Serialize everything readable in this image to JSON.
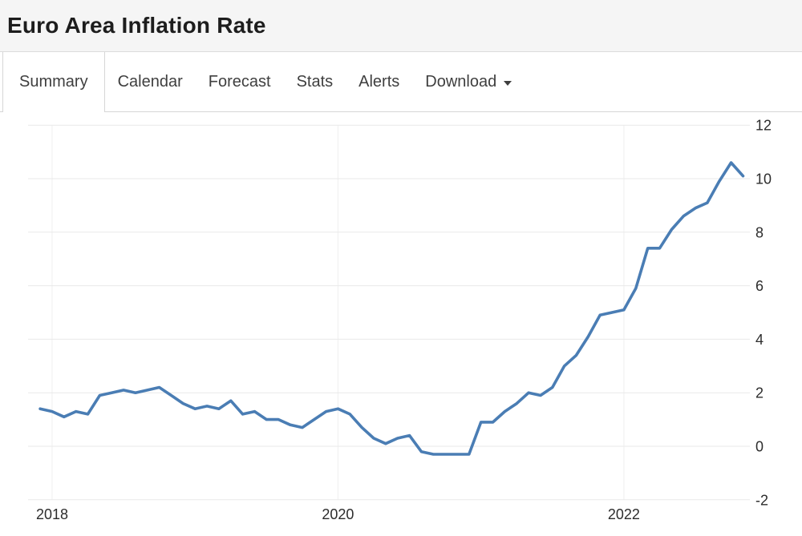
{
  "header": {
    "title": "Euro Area Inflation Rate"
  },
  "tabs": {
    "items": [
      {
        "label": "Summary",
        "active": true
      },
      {
        "label": "Calendar",
        "active": false
      },
      {
        "label": "Forecast",
        "active": false
      },
      {
        "label": "Stats",
        "active": false
      },
      {
        "label": "Alerts",
        "active": false
      },
      {
        "label": "Download",
        "active": false,
        "has_caret": true
      }
    ]
  },
  "colors": {
    "line": "#4a7db4",
    "grid_horizontal": "#e9e9e9",
    "grid_vertical": "#efefef",
    "axis_text": "#2c2c2c",
    "title_text": "#1d1d1d",
    "tab_text": "#3f3f3f",
    "border": "#d6d6d6",
    "header_bg": "#f5f5f5"
  },
  "chart_data": {
    "type": "line",
    "title": "Euro Area Inflation Rate",
    "ylabel": "",
    "xlabel": "",
    "unit": "percent",
    "ylim": [
      -2,
      12
    ],
    "grid": true,
    "legend": "none",
    "y_ticks": [
      12,
      10,
      8,
      6,
      4,
      2,
      0,
      -2
    ],
    "x_ticks": [
      {
        "label": "2018",
        "x_index": 1
      },
      {
        "label": "2020",
        "x_index": 25
      },
      {
        "label": "2022",
        "x_index": 49
      }
    ],
    "x": [
      "2017-12",
      "2018-01",
      "2018-02",
      "2018-03",
      "2018-04",
      "2018-05",
      "2018-06",
      "2018-07",
      "2018-08",
      "2018-09",
      "2018-10",
      "2018-11",
      "2018-12",
      "2019-01",
      "2019-02",
      "2019-03",
      "2019-04",
      "2019-05",
      "2019-06",
      "2019-07",
      "2019-08",
      "2019-09",
      "2019-10",
      "2019-11",
      "2019-12",
      "2020-01",
      "2020-02",
      "2020-03",
      "2020-04",
      "2020-05",
      "2020-06",
      "2020-07",
      "2020-08",
      "2020-09",
      "2020-10",
      "2020-11",
      "2020-12",
      "2021-01",
      "2021-02",
      "2021-03",
      "2021-04",
      "2021-05",
      "2021-06",
      "2021-07",
      "2021-08",
      "2021-09",
      "2021-10",
      "2021-11",
      "2021-12",
      "2022-01",
      "2022-02",
      "2022-03",
      "2022-04",
      "2022-05",
      "2022-06",
      "2022-07",
      "2022-08",
      "2022-09",
      "2022-10",
      "2022-11"
    ],
    "values": [
      1.4,
      1.3,
      1.1,
      1.3,
      1.2,
      1.9,
      2.0,
      2.1,
      2.0,
      2.1,
      2.2,
      1.9,
      1.6,
      1.4,
      1.5,
      1.4,
      1.7,
      1.2,
      1.3,
      1.0,
      1.0,
      0.8,
      0.7,
      1.0,
      1.3,
      1.4,
      1.2,
      0.7,
      0.3,
      0.1,
      0.3,
      0.4,
      -0.2,
      -0.3,
      -0.3,
      -0.3,
      -0.3,
      0.9,
      0.9,
      1.3,
      1.6,
      2.0,
      1.9,
      2.2,
      3.0,
      3.4,
      4.1,
      4.9,
      5.0,
      5.1,
      5.9,
      7.4,
      7.4,
      8.1,
      8.6,
      8.9,
      9.1,
      9.9,
      10.6,
      10.1
    ]
  }
}
